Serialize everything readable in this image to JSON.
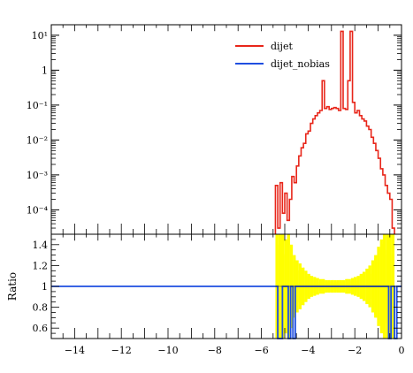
{
  "chart_data": [
    {
      "type": "line",
      "panel": "main",
      "title": "",
      "xlabel": "",
      "ylabel": "",
      "xlim": [
        -15,
        0
      ],
      "ylim": [
        2e-05,
        20
      ],
      "yscale": "log",
      "ytick_labels": [
        "10⁻⁴",
        "10⁻³",
        "10⁻²",
        "10⁻¹",
        "1",
        "10¹"
      ],
      "ytick_values": [
        0.0001,
        0.001,
        0.01,
        0.1,
        1,
        10
      ],
      "legend_position": "top-right",
      "grid": false,
      "series": [
        {
          "name": "dijet",
          "color": "#e8261a",
          "drawstyle": "steps",
          "x": [
            -5.35,
            -5.25,
            -5.15,
            -5.05,
            -4.95,
            -4.85,
            -4.75,
            -4.65,
            -4.55,
            -4.45,
            -4.35,
            -4.25,
            -4.15,
            -4.05,
            -3.95,
            -3.85,
            -3.75,
            -3.65,
            -3.55,
            -3.45,
            -3.35,
            -3.25,
            -3.15,
            -3.05,
            -2.95,
            -2.85,
            -2.75,
            -2.65,
            -2.55,
            -2.45,
            -2.35,
            -2.25,
            -2.15,
            -2.05,
            -1.95,
            -1.85,
            -1.75,
            -1.65,
            -1.55,
            -1.45,
            -1.35,
            -1.25,
            -1.15,
            -1.05,
            -0.95,
            -0.85,
            -0.75,
            -0.65,
            -0.55,
            -0.45,
            -0.35
          ],
          "y": [
            0.0005,
            3e-05,
            0.0006,
            8e-05,
            0.0003,
            5e-05,
            0.0002,
            0.0009,
            0.0006,
            0.0018,
            0.0035,
            0.006,
            0.008,
            0.015,
            0.018,
            0.03,
            0.04,
            0.05,
            0.06,
            0.07,
            0.5,
            0.08,
            0.09,
            0.075,
            0.08,
            0.085,
            0.08,
            0.07,
            13,
            0.08,
            0.075,
            0.5,
            13,
            0.12,
            0.06,
            0.07,
            0.05,
            0.04,
            0.035,
            0.025,
            0.02,
            0.012,
            0.008,
            0.005,
            0.003,
            0.0015,
            0.001,
            0.0005,
            0.0003,
            0.0002,
            3e-05
          ]
        },
        {
          "name": "dijet_nobias",
          "color": "#1f4fe0",
          "drawstyle": "steps",
          "x": [],
          "y": []
        }
      ]
    },
    {
      "type": "line",
      "panel": "ratio",
      "title": "",
      "xlabel": "",
      "ylabel": "Ratio",
      "xlim": [
        -15,
        0
      ],
      "ylim": [
        0.5,
        1.5
      ],
      "xtick_labels": [
        "−14",
        "−12",
        "−10",
        "−8",
        "−6",
        "−4",
        "−2",
        "0"
      ],
      "xtick_values": [
        -14,
        -12,
        -10,
        -8,
        -6,
        -4,
        -2,
        0
      ],
      "ytick_labels": [
        "0.6",
        "0.8",
        "1",
        "1.2",
        "1.4"
      ],
      "ytick_values": [
        0.6,
        0.8,
        1.0,
        1.2,
        1.4
      ],
      "grid": false,
      "ratio_line": {
        "color": "#1f4fe0",
        "value": 1.0,
        "dips": [
          [
            -5.3,
            -5.1
          ],
          [
            -4.85,
            -4.75
          ],
          [
            -4.65,
            -4.55
          ],
          [
            -0.55,
            -0.45
          ],
          [
            -0.3,
            -0.2
          ]
        ],
        "dip_to": 0.5
      },
      "uncertainty_band": {
        "color": "#ffff00",
        "center": 1.0,
        "x_range": [
          -5.4,
          -0.3
        ],
        "half_width": [
          0.5,
          0.5,
          0.5,
          0.45,
          0.5,
          0.4,
          0.3,
          0.25,
          0.22,
          0.18,
          0.15,
          0.12,
          0.1,
          0.09,
          0.08,
          0.07,
          0.07,
          0.06,
          0.06,
          0.06,
          0.06,
          0.06,
          0.06,
          0.06,
          0.07,
          0.07,
          0.08,
          0.09,
          0.1,
          0.12,
          0.14,
          0.17,
          0.2,
          0.25,
          0.3,
          0.38,
          0.45,
          0.5,
          0.5,
          0.5,
          0.5
        ]
      }
    }
  ]
}
